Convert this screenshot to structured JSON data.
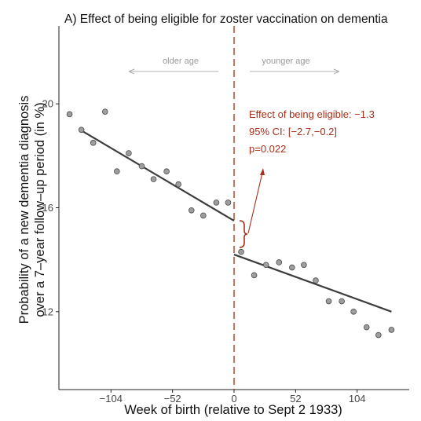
{
  "chart_data": {
    "type": "scatter",
    "title": "A) Effect of being eligible for zoster vaccination on dementia",
    "xlabel": "Week of birth (relative to Sept 2 1933)",
    "ylabel_lines": [
      "Probability of a new dementia diagnosis",
      "over a 7–year follow–up period (in %)"
    ],
    "xlim": [
      -148,
      148
    ],
    "ylim": [
      9.0,
      23.0
    ],
    "x_ticks": [
      -104,
      -52,
      0,
      52,
      104
    ],
    "x_tick_labels": [
      "−104",
      "−52",
      "0",
      "52",
      "104"
    ],
    "y_ticks": [
      12,
      16,
      20
    ],
    "y_tick_labels": [
      "12",
      "16",
      "20"
    ],
    "cutoff_x": 0,
    "points": [
      {
        "x": -139,
        "y": 19.6
      },
      {
        "x": -129,
        "y": 19.0
      },
      {
        "x": -119,
        "y": 18.5
      },
      {
        "x": -109,
        "y": 19.7
      },
      {
        "x": -99,
        "y": 17.4
      },
      {
        "x": -89,
        "y": 18.1
      },
      {
        "x": -78,
        "y": 17.6
      },
      {
        "x": -68,
        "y": 17.1
      },
      {
        "x": -57,
        "y": 17.4
      },
      {
        "x": -47,
        "y": 16.9
      },
      {
        "x": -36,
        "y": 15.9
      },
      {
        "x": -26,
        "y": 15.7
      },
      {
        "x": -15,
        "y": 16.2
      },
      {
        "x": -5,
        "y": 16.2
      },
      {
        "x": 6,
        "y": 14.3
      },
      {
        "x": 17,
        "y": 13.4
      },
      {
        "x": 27,
        "y": 13.8
      },
      {
        "x": 38,
        "y": 13.9
      },
      {
        "x": 49,
        "y": 13.7
      },
      {
        "x": 59,
        "y": 13.8
      },
      {
        "x": 69,
        "y": 13.2
      },
      {
        "x": 80,
        "y": 12.4
      },
      {
        "x": 91,
        "y": 12.4
      },
      {
        "x": 101,
        "y": 12.0
      },
      {
        "x": 112,
        "y": 11.4
      },
      {
        "x": 122,
        "y": 11.1
      },
      {
        "x": 133,
        "y": 11.3
      }
    ],
    "fit_lines": [
      {
        "x": [
          -130,
          0
        ],
        "y": [
          19.0,
          15.5
        ]
      },
      {
        "x": [
          0,
          133
        ],
        "y": [
          14.2,
          12.0
        ]
      }
    ],
    "labels": {
      "older": "older age",
      "younger": "younger age"
    },
    "annotation_lines": [
      "Effect of being eligible: −1.3",
      "95% CI: [−2.7,−0.2]",
      "p=0.022"
    ],
    "colors": {
      "points_fill": "#9e9e9e",
      "points_stroke": "#4a4a4a",
      "fit_line": "#3d3d3d",
      "cutoff": "#b03a1e",
      "annotation": "#a82f18",
      "age_labels": "#9a9a9a"
    }
  }
}
